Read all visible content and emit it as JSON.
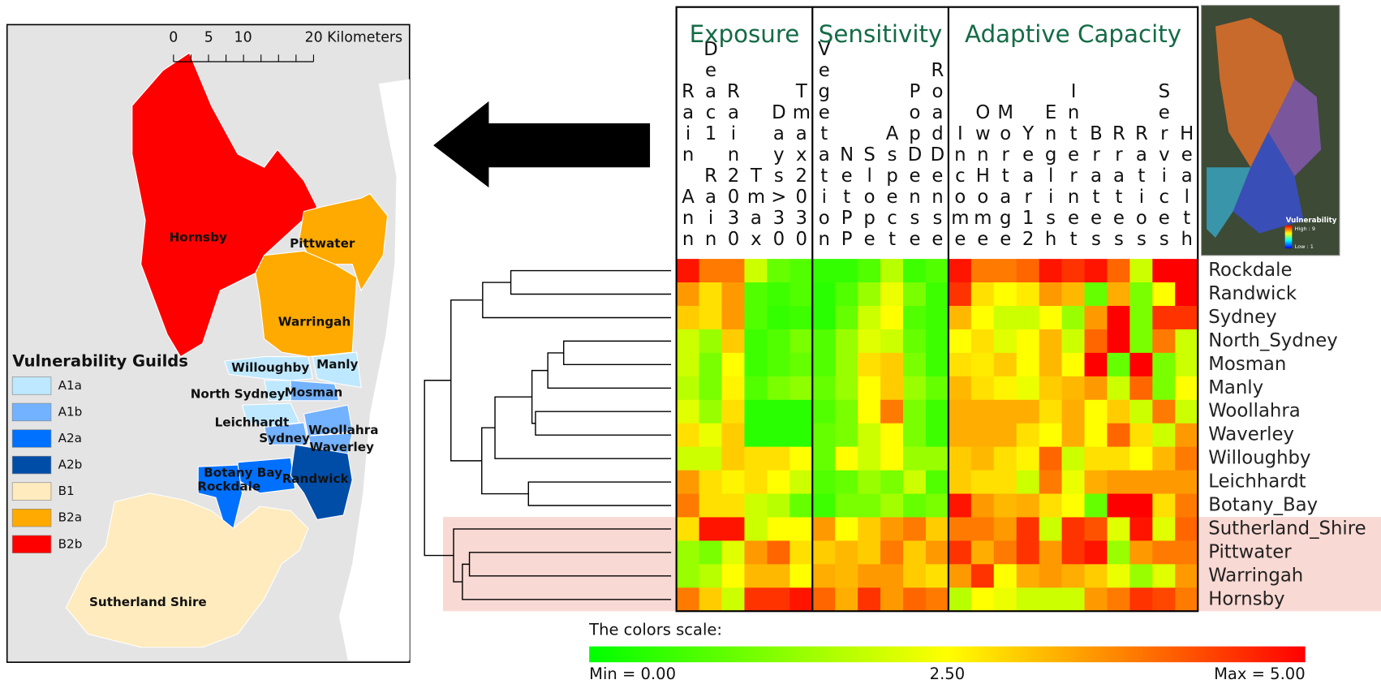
{
  "chart_data": {
    "type": "heatmap",
    "groups": [
      {
        "name": "Exposure",
        "columns": 6
      },
      {
        "name": "Sensitivity",
        "columns": 6
      },
      {
        "name": "Adaptive Capacity",
        "columns": 11
      }
    ],
    "columns": [
      "Rain Ann",
      "Deac1 Rain",
      "Rain2030",
      "Tmax",
      "Days>30",
      "Tmax2030",
      "Vegetation",
      "NetPP",
      "Slope",
      "Aspect",
      "PopDense",
      "RoadDense",
      "Income",
      "OwnHome",
      "Mortage",
      "Year12",
      "English",
      "Internet",
      "Brates",
      "Rrates",
      "Ratios",
      "Services",
      "Health"
    ],
    "rows": [
      "Rockdale",
      "Randwick",
      "Sydney",
      "North_Sydney",
      "Mosman",
      "Manly",
      "Woollahra",
      "Waverley",
      "Willoughby",
      "Leichhardt",
      "Botany_Bay",
      "Sutherland_Shire",
      "Pittwater",
      "Warringah",
      "Hornsby"
    ],
    "values": [
      [
        4.8,
        3.8,
        3.8,
        2.0,
        1.0,
        0.8,
        0.5,
        0.5,
        0.8,
        1.8,
        0.6,
        0.8,
        4.8,
        3.8,
        3.8,
        4.0,
        4.8,
        4.5,
        4.8,
        4.0,
        2.0,
        5.0,
        5.0
      ],
      [
        3.5,
        2.8,
        3.5,
        0.8,
        0.6,
        0.8,
        0.4,
        0.8,
        1.5,
        2.3,
        1.2,
        0.6,
        4.5,
        2.8,
        2.5,
        2.7,
        3.5,
        3.2,
        1.0,
        3.3,
        1.2,
        2.5,
        5.0
      ],
      [
        3.0,
        2.8,
        3.5,
        0.8,
        0.5,
        0.6,
        0.4,
        1.0,
        2.0,
        2.5,
        0.8,
        0.6,
        3.2,
        2.5,
        2.0,
        2.0,
        2.5,
        1.5,
        3.5,
        5.0,
        1.2,
        4.5,
        4.5
      ],
      [
        2.0,
        1.5,
        3.0,
        0.6,
        0.8,
        1.2,
        0.8,
        1.5,
        2.2,
        2.0,
        1.0,
        0.6,
        2.5,
        2.8,
        2.2,
        2.5,
        3.2,
        2.0,
        4.0,
        5.0,
        1.2,
        3.8,
        2.0
      ],
      [
        2.0,
        1.2,
        2.5,
        0.6,
        0.8,
        1.0,
        0.8,
        1.5,
        2.8,
        3.0,
        1.2,
        0.6,
        2.8,
        2.7,
        3.0,
        2.5,
        3.2,
        2.5,
        5.0,
        1.0,
        5.0,
        1.2,
        2.0
      ],
      [
        1.8,
        1.2,
        2.6,
        0.8,
        1.2,
        1.4,
        1.0,
        1.5,
        2.5,
        3.0,
        1.5,
        1.0,
        3.2,
        2.8,
        2.6,
        2.3,
        3.0,
        3.2,
        3.5,
        2.0,
        4.0,
        1.2,
        2.5
      ],
      [
        2.2,
        1.5,
        2.8,
        0.4,
        0.4,
        0.4,
        0.8,
        1.2,
        2.5,
        3.8,
        1.2,
        0.6,
        3.3,
        3.3,
        3.3,
        3.3,
        2.8,
        3.3,
        2.5,
        3.0,
        2.0,
        3.8,
        2.0
      ],
      [
        2.8,
        2.3,
        3.0,
        0.4,
        0.4,
        0.4,
        1.0,
        1.2,
        2.0,
        2.5,
        1.2,
        0.6,
        3.3,
        3.3,
        3.3,
        2.8,
        2.5,
        3.3,
        2.5,
        4.0,
        2.8,
        2.0,
        3.5
      ],
      [
        2.0,
        2.0,
        3.0,
        2.8,
        2.8,
        2.5,
        1.0,
        2.5,
        2.0,
        2.5,
        1.5,
        1.5,
        3.0,
        3.2,
        2.8,
        2.6,
        4.0,
        2.0,
        2.8,
        2.8,
        2.5,
        3.2,
        3.8
      ],
      [
        3.5,
        2.8,
        2.6,
        2.8,
        2.5,
        2.0,
        0.8,
        1.0,
        1.5,
        1.2,
        2.0,
        0.8,
        3.0,
        2.8,
        2.8,
        2.0,
        3.8,
        2.3,
        3.3,
        3.5,
        3.5,
        3.5,
        3.5
      ],
      [
        3.8,
        2.8,
        2.8,
        2.0,
        1.8,
        1.0,
        0.6,
        1.2,
        1.2,
        1.6,
        1.0,
        1.2,
        4.8,
        3.5,
        3.2,
        3.3,
        2.8,
        2.5,
        1.0,
        5.0,
        5.0,
        2.8,
        3.8
      ],
      [
        2.8,
        4.8,
        4.8,
        2.0,
        2.5,
        2.5,
        3.5,
        2.5,
        3.0,
        3.5,
        3.8,
        3.0,
        3.8,
        3.8,
        3.5,
        4.5,
        2.0,
        4.5,
        4.2,
        2.2,
        4.8,
        2.2,
        4.0
      ],
      [
        1.5,
        1.2,
        2.2,
        3.5,
        4.0,
        2.8,
        3.0,
        3.2,
        3.0,
        3.8,
        3.0,
        3.5,
        4.5,
        3.3,
        3.8,
        4.5,
        3.5,
        4.5,
        4.8,
        1.5,
        3.5,
        3.8,
        3.8
      ],
      [
        1.5,
        1.8,
        2.5,
        3.2,
        3.2,
        2.5,
        3.3,
        3.2,
        3.5,
        3.5,
        3.0,
        2.8,
        3.5,
        4.5,
        2.5,
        3.3,
        3.5,
        3.3,
        3.0,
        2.3,
        1.5,
        2.2,
        3.5
      ],
      [
        3.8,
        3.0,
        2.0,
        4.5,
        4.5,
        4.8,
        4.0,
        3.3,
        4.5,
        3.5,
        4.0,
        3.8,
        1.8,
        2.5,
        2.3,
        2.0,
        2.0,
        2.0,
        3.5,
        3.8,
        4.5,
        4.3,
        3.8
      ]
    ],
    "zlim": [
      0,
      5
    ],
    "colorscale": [
      "#00ff00",
      "#ffff00",
      "#ff0000"
    ],
    "colorbar_title": "The colors scale:",
    "colorbar_ticks": [
      {
        "value": 0,
        "label": "Min =  0.00"
      },
      {
        "value": 2.5,
        "label": "2.50"
      },
      {
        "value": 5,
        "label": "Max = 5.00"
      }
    ]
  },
  "map": {
    "scale_labels": [
      "0",
      "5",
      "10",
      "20 Kilometers"
    ],
    "legend": {
      "title": "Vulnerability Guilds",
      "items": [
        {
          "name": "A1a",
          "color": "#bee8ff"
        },
        {
          "name": "A1b",
          "color": "#73b2ff"
        },
        {
          "name": "A2a",
          "color": "#0070ff"
        },
        {
          "name": "A2b",
          "color": "#004da8"
        },
        {
          "name": "B1",
          "color": "#ffebbe"
        },
        {
          "name": "B2a",
          "color": "#ffaa00"
        },
        {
          "name": "B2b",
          "color": "#ff0000"
        }
      ]
    },
    "regions": [
      {
        "label": "Hornsby",
        "guild": "B2b"
      },
      {
        "label": "Pittwater",
        "guild": "B2a"
      },
      {
        "label": "Warringah",
        "guild": "B2a"
      },
      {
        "label": "Willoughby",
        "guild": "A1a"
      },
      {
        "label": "Manly",
        "guild": "A1a"
      },
      {
        "label": "North Sydney",
        "guild": "A1a"
      },
      {
        "label": "Mosman",
        "guild": "A1b"
      },
      {
        "label": "Leichhardt",
        "guild": "A1a"
      },
      {
        "label": "Woollahra",
        "guild": "A1b"
      },
      {
        "label": "Sydney",
        "guild": "A1b"
      },
      {
        "label": "Waverley",
        "guild": "A1b"
      },
      {
        "label": "Botany Bay",
        "guild": "A2a"
      },
      {
        "label": "Randwick",
        "guild": "A2b"
      },
      {
        "label": "Rockdale",
        "guild": "A2a"
      },
      {
        "label": "Sutherland Shire",
        "guild": "B1"
      }
    ]
  },
  "inset": {
    "title": "Vulnerability",
    "high": "High : 9",
    "low": "Low : 1"
  }
}
